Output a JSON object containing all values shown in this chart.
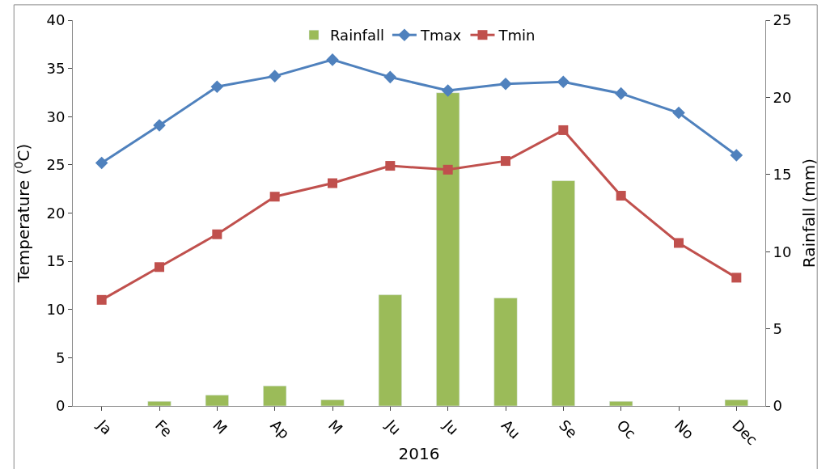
{
  "chart_data": {
    "type": "bar",
    "xlabel": "2016",
    "ylabel": "Temperature ($^{0}$C)",
    "y2label": "Rainfall (mm)",
    "categories": [
      "Ja",
      "Fe",
      "M",
      "Ap",
      "M",
      "Ju",
      "Ju",
      "Au",
      "Se",
      "Oc",
      "No",
      "Dec"
    ],
    "series": [
      {
        "name": "Rainfall",
        "axis": "y2",
        "color": "#9bbb59",
        "values": [
          null,
          0.3,
          0.7,
          1.3,
          0.4,
          7.2,
          20.3,
          7.0,
          14.6,
          0.3,
          null,
          0.4
        ]
      },
      {
        "name": "Tmax",
        "type": "line",
        "color": "#4f81bd",
        "marker": "diamond",
        "values": [
          25.2,
          29.1,
          33.1,
          34.2,
          35.9,
          34.1,
          32.7,
          33.4,
          33.6,
          32.4,
          30.4,
          26.0
        ]
      },
      {
        "name": "Tmin",
        "type": "line",
        "color": "#c0504d",
        "marker": "square",
        "values": [
          11.0,
          14.4,
          17.8,
          21.7,
          23.1,
          24.9,
          24.5,
          25.4,
          28.6,
          21.8,
          16.9,
          13.3
        ]
      }
    ],
    "ylim": [
      0,
      40
    ],
    "yticks": [
      0,
      5,
      10,
      15,
      20,
      25,
      30,
      35,
      40
    ],
    "y2lim": [
      0,
      25
    ],
    "y2ticks": [
      0,
      5,
      10,
      15,
      20,
      25
    ],
    "legend": "top"
  }
}
